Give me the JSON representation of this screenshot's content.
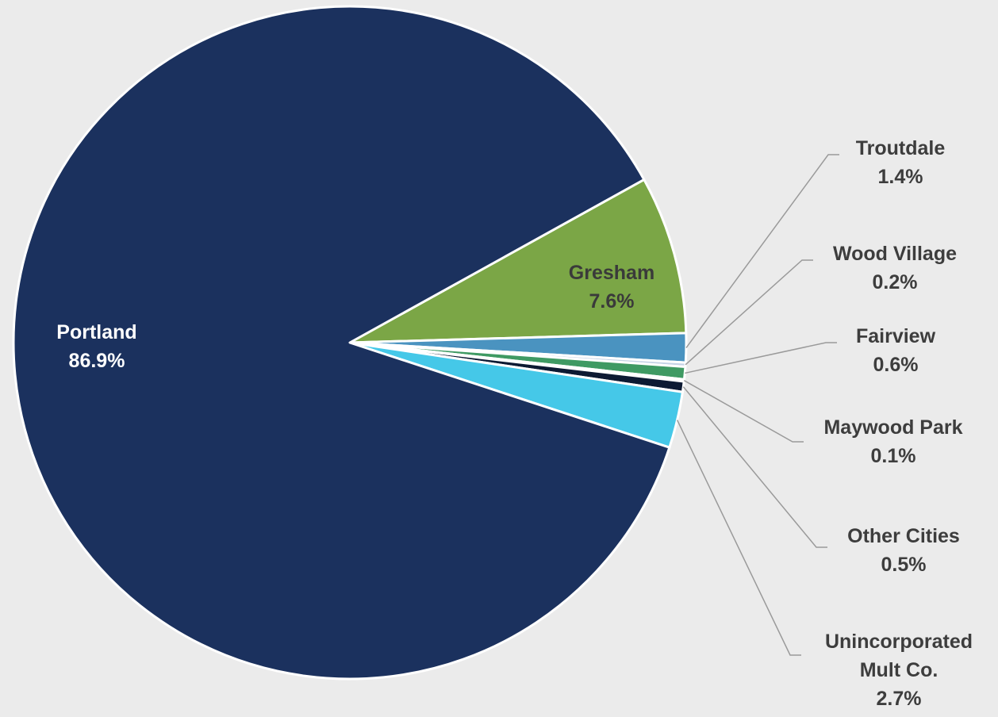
{
  "chart_data": {
    "type": "pie",
    "title": "",
    "slices": [
      {
        "label": "Portland",
        "value": 86.9,
        "value_label": "86.9%",
        "color": "#1b315e"
      },
      {
        "label": "Gresham",
        "value": 7.6,
        "value_label": "7.6%",
        "color": "#7ba646"
      },
      {
        "label": "Troutdale",
        "value": 1.4,
        "value_label": "1.4%",
        "color": "#4a93c0"
      },
      {
        "label": "Wood Village",
        "value": 0.2,
        "value_label": "0.2%",
        "color": "#c5d3e6"
      },
      {
        "label": "Fairview",
        "value": 0.6,
        "value_label": "0.6%",
        "color": "#3f9a63"
      },
      {
        "label": "Maywood Park",
        "value": 0.1,
        "value_label": "0.1%",
        "color": "#b9c3cf"
      },
      {
        "label": "Other Cities",
        "value": 0.5,
        "value_label": "0.5%",
        "color": "#0d1a33"
      },
      {
        "label": "Unincorporated Mult Co.",
        "label_lines": [
          "Unincorporated",
          "Mult Co."
        ],
        "value": 2.7,
        "value_label": "2.7%",
        "color": "#45c8e8"
      }
    ]
  }
}
